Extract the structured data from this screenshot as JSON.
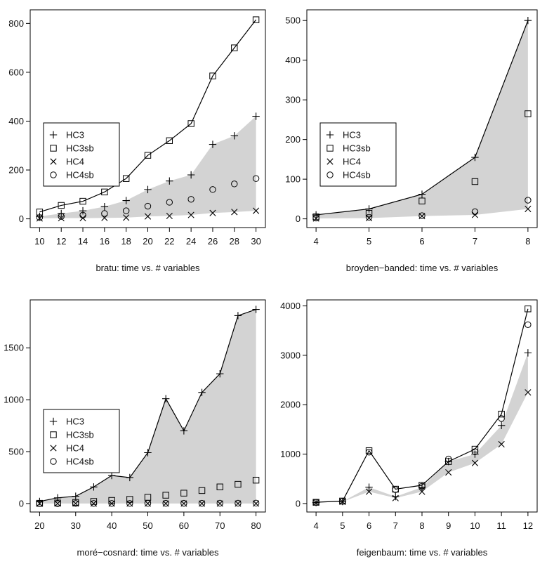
{
  "chart_data": [
    {
      "type": "scatter",
      "title": "",
      "xlabel": "bratu: time vs. # variables",
      "ylabel": "",
      "x": [
        10,
        12,
        14,
        16,
        18,
        20,
        22,
        24,
        26,
        28,
        30
      ],
      "xlim": [
        10,
        30
      ],
      "ylim": [
        0,
        820
      ],
      "xticks": [
        "10",
        "12",
        "14",
        "16",
        "18",
        "20",
        "22",
        "24",
        "26",
        "28",
        "30"
      ],
      "yticks": [
        "0",
        "200",
        "400",
        "600",
        "800"
      ],
      "legend": "left",
      "shaded_band": {
        "color": "#d3d3d3",
        "lower": [
          2,
          3,
          3,
          4,
          5,
          10,
          12,
          16,
          24,
          28,
          33
        ],
        "upper": [
          10,
          22,
          33,
          50,
          75,
          120,
          155,
          180,
          305,
          340,
          420
        ]
      },
      "series": [
        {
          "name": "HC3",
          "marker": "plus",
          "line": false,
          "values": [
            10,
            22,
            33,
            50,
            75,
            120,
            155,
            180,
            305,
            340,
            420
          ]
        },
        {
          "name": "HC3sb",
          "marker": "square",
          "line": true,
          "values": [
            28,
            55,
            72,
            110,
            165,
            260,
            320,
            390,
            585,
            700,
            815
          ]
        },
        {
          "name": "HC4",
          "marker": "cross",
          "line": false,
          "values": [
            2,
            3,
            3,
            4,
            5,
            10,
            12,
            16,
            24,
            28,
            33
          ]
        },
        {
          "name": "HC4sb",
          "marker": "circle",
          "line": false,
          "values": [
            5,
            10,
            15,
            22,
            33,
            52,
            68,
            80,
            120,
            143,
            165
          ]
        }
      ]
    },
    {
      "type": "scatter",
      "title": "",
      "xlabel": "broyden−banded: time vs. # variables",
      "ylabel": "",
      "x": [
        4,
        5,
        6,
        7,
        8
      ],
      "xlim": [
        4,
        8
      ],
      "ylim": [
        0,
        505
      ],
      "xticks": [
        "4",
        "5",
        "6",
        "7",
        "8"
      ],
      "yticks": [
        "0",
        "100",
        "200",
        "300",
        "400",
        "500"
      ],
      "legend": "left",
      "shaded_band": {
        "color": "#d3d3d3",
        "lower": [
          1,
          2,
          7,
          10,
          25
        ],
        "upper": [
          10,
          25,
          62,
          155,
          500
        ]
      },
      "series": [
        {
          "name": "HC3",
          "marker": "plus",
          "line": true,
          "values": [
            10,
            25,
            62,
            155,
            500
          ]
        },
        {
          "name": "HC3sb",
          "marker": "square",
          "line": false,
          "values": [
            5,
            14,
            45,
            94,
            265
          ]
        },
        {
          "name": "HC4",
          "marker": "cross",
          "line": false,
          "values": [
            1,
            2,
            7,
            10,
            25
          ]
        },
        {
          "name": "HC4sb",
          "marker": "circle",
          "line": false,
          "values": [
            2,
            4,
            8,
            18,
            47
          ]
        }
      ]
    },
    {
      "type": "scatter",
      "title": "",
      "xlabel": "moré−cosnard: time vs. # variables",
      "ylabel": "",
      "x": [
        20,
        25,
        30,
        35,
        40,
        45,
        50,
        55,
        60,
        65,
        70,
        75,
        80
      ],
      "xlim": [
        20,
        80
      ],
      "ylim": [
        0,
        1880
      ],
      "xticks": [
        "20",
        "30",
        "40",
        "50",
        "60",
        "70",
        "80"
      ],
      "yticks": [
        "0",
        "500",
        "1000",
        "1500"
      ],
      "legend": "left",
      "shaded_band": {
        "color": "#d3d3d3",
        "lower": [
          0,
          0,
          0,
          0,
          0,
          0,
          0,
          0,
          0,
          0,
          0,
          0,
          0
        ],
        "upper": [
          20,
          55,
          70,
          160,
          270,
          250,
          490,
          1010,
          700,
          1070,
          1250,
          1810,
          1870
        ]
      },
      "series": [
        {
          "name": "HC3",
          "marker": "plus",
          "line": true,
          "values": [
            20,
            55,
            70,
            160,
            270,
            250,
            490,
            1010,
            700,
            1070,
            1250,
            1810,
            1870
          ]
        },
        {
          "name": "HC3sb",
          "marker": "square",
          "line": false,
          "values": [
            2,
            5,
            10,
            20,
            30,
            40,
            60,
            80,
            100,
            125,
            160,
            185,
            225
          ]
        },
        {
          "name": "HC4",
          "marker": "cross",
          "line": false,
          "values": [
            0,
            0,
            0,
            0,
            0,
            0,
            0,
            0,
            0,
            0,
            0,
            0,
            0
          ]
        },
        {
          "name": "HC4sb",
          "marker": "circle",
          "line": false,
          "values": [
            0,
            0,
            1,
            1,
            1,
            1,
            2,
            2,
            2,
            2,
            3,
            3,
            4
          ]
        }
      ]
    },
    {
      "type": "scatter",
      "title": "",
      "xlabel": "feigenbaum: time vs. # variables",
      "ylabel": "",
      "x": [
        4,
        5,
        6,
        7,
        8,
        9,
        10,
        11,
        12
      ],
      "xlim": [
        4,
        12
      ],
      "ylim": [
        0,
        3950
      ],
      "xticks": [
        "4",
        "5",
        "6",
        "7",
        "8",
        "9",
        "10",
        "11",
        "12"
      ],
      "yticks": [
        "0",
        "1000",
        "2000",
        "3000",
        "4000"
      ],
      "legend": "none",
      "shaded_band": {
        "color": "#d3d3d3",
        "lower": [
          20,
          35,
          240,
          110,
          240,
          630,
          820,
          1200,
          2250
        ],
        "upper": [
          20,
          40,
          330,
          140,
          330,
          850,
          1000,
          1580,
          3050
        ]
      },
      "series": [
        {
          "name": "HC3",
          "marker": "plus",
          "line": false,
          "values": [
            20,
            40,
            330,
            140,
            330,
            850,
            1000,
            1580,
            3050
          ]
        },
        {
          "name": "HC3sb",
          "marker": "square",
          "line": true,
          "values": [
            25,
            50,
            1070,
            290,
            370,
            850,
            1100,
            1810,
            3940
          ]
        },
        {
          "name": "HC4",
          "marker": "cross",
          "line": false,
          "values": [
            20,
            35,
            240,
            110,
            240,
            630,
            820,
            1200,
            2250
          ]
        },
        {
          "name": "HC4sb",
          "marker": "circle",
          "line": false,
          "values": [
            25,
            45,
            1040,
            280,
            350,
            900,
            1050,
            1720,
            3620
          ]
        }
      ]
    }
  ]
}
